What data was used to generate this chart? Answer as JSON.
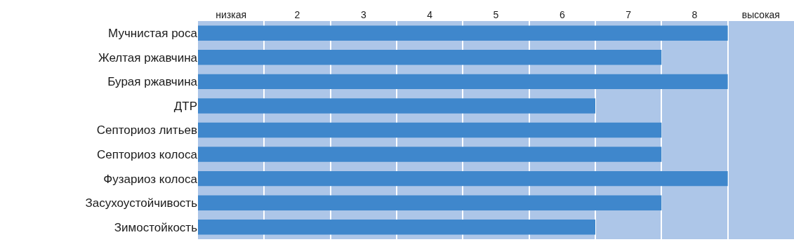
{
  "chart_data": {
    "type": "bar",
    "orientation": "horizontal",
    "categories": [
      "Мучнистая роса",
      "Желтая ржавчина",
      "Бурая ржавчина",
      "ДТР",
      "Септориоз литьев",
      "Септориоз колоса",
      "Фузариоз колоса",
      "Засухоустойчивость",
      "Зимостойкость"
    ],
    "values": [
      8,
      7,
      8,
      6,
      7,
      7,
      8,
      7,
      6
    ],
    "color": "#3f87cc",
    "xlim": [
      0,
      9
    ],
    "xticks": [
      {
        "value": 0,
        "label": null
      },
      {
        "value": 0.5,
        "label": "низкая"
      },
      {
        "value": 1,
        "label": null
      },
      {
        "value": 1.5,
        "label": "2"
      },
      {
        "value": 2,
        "label": null
      },
      {
        "value": 2.5,
        "label": "3"
      },
      {
        "value": 3,
        "label": null
      },
      {
        "value": 3.5,
        "label": "4"
      },
      {
        "value": 4,
        "label": null
      },
      {
        "value": 4.5,
        "label": "5"
      },
      {
        "value": 5,
        "label": null
      },
      {
        "value": 5.5,
        "label": "6"
      },
      {
        "value": 6,
        "label": null
      },
      {
        "value": 6.5,
        "label": "7"
      },
      {
        "value": 7,
        "label": null
      },
      {
        "value": 7.5,
        "label": "8"
      },
      {
        "value": 8,
        "label": null
      },
      {
        "value": 8.5,
        "label": "высокая"
      },
      {
        "value": 9,
        "label": null
      }
    ],
    "grid": "x"
  }
}
